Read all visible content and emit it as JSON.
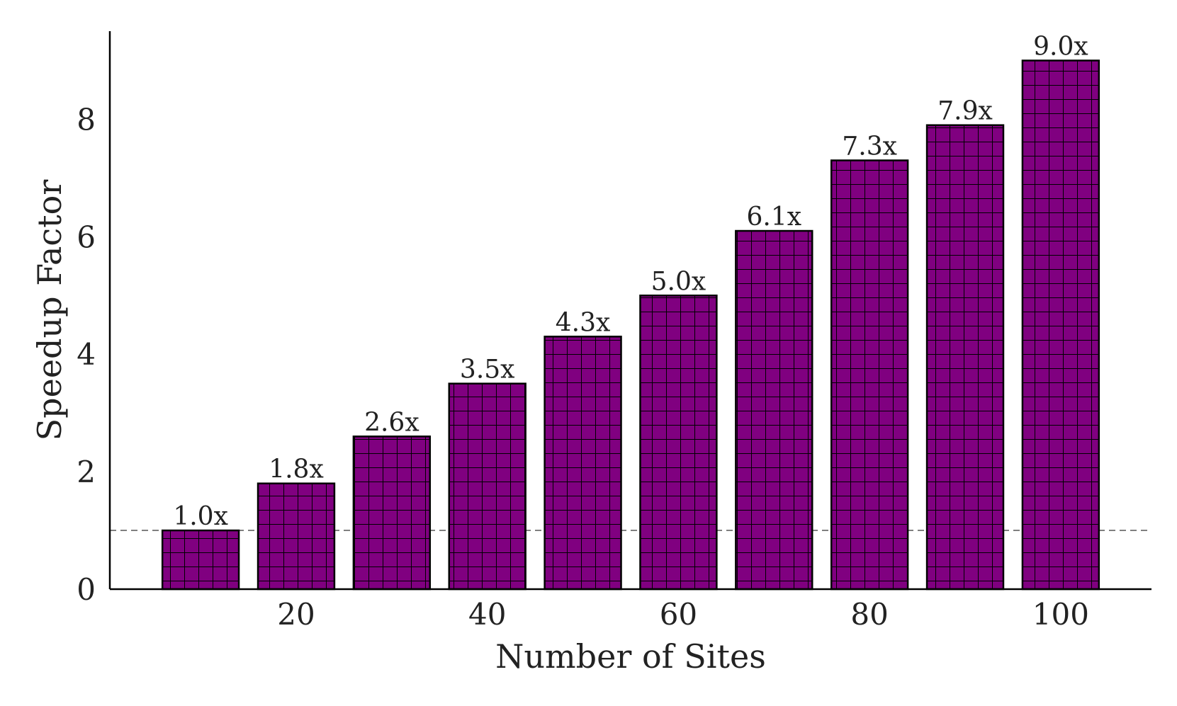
{
  "chart_data": {
    "type": "bar",
    "xlabel": "Number of Sites",
    "ylabel": "Speedup Factor",
    "x": [
      10,
      20,
      30,
      40,
      50,
      60,
      70,
      80,
      90,
      100
    ],
    "values": [
      1.0,
      1.8,
      2.6,
      3.5,
      4.3,
      5.0,
      6.1,
      7.3,
      7.9,
      9.0
    ],
    "value_labels": [
      "1.0x",
      "1.8x",
      "2.6x",
      "3.5x",
      "4.3x",
      "5.0x",
      "6.1x",
      "7.3x",
      "7.9x",
      "9.0x"
    ],
    "xticks": [
      20,
      40,
      60,
      80,
      100
    ],
    "xtick_labels": [
      "20",
      "40",
      "60",
      "80",
      "100"
    ],
    "yticks": [
      0,
      2,
      4,
      6,
      8
    ],
    "ytick_labels": [
      "0",
      "2",
      "4",
      "6",
      "8"
    ],
    "xlim": [
      0.5,
      109.5
    ],
    "ylim": [
      0,
      9.5
    ],
    "bar_width": 8,
    "reference_line": 1.0,
    "bar_color": "#800080",
    "bar_hatch": "grid",
    "bar_edge_color": "#000000",
    "reference_line_color": "#808080",
    "grid": false
  }
}
